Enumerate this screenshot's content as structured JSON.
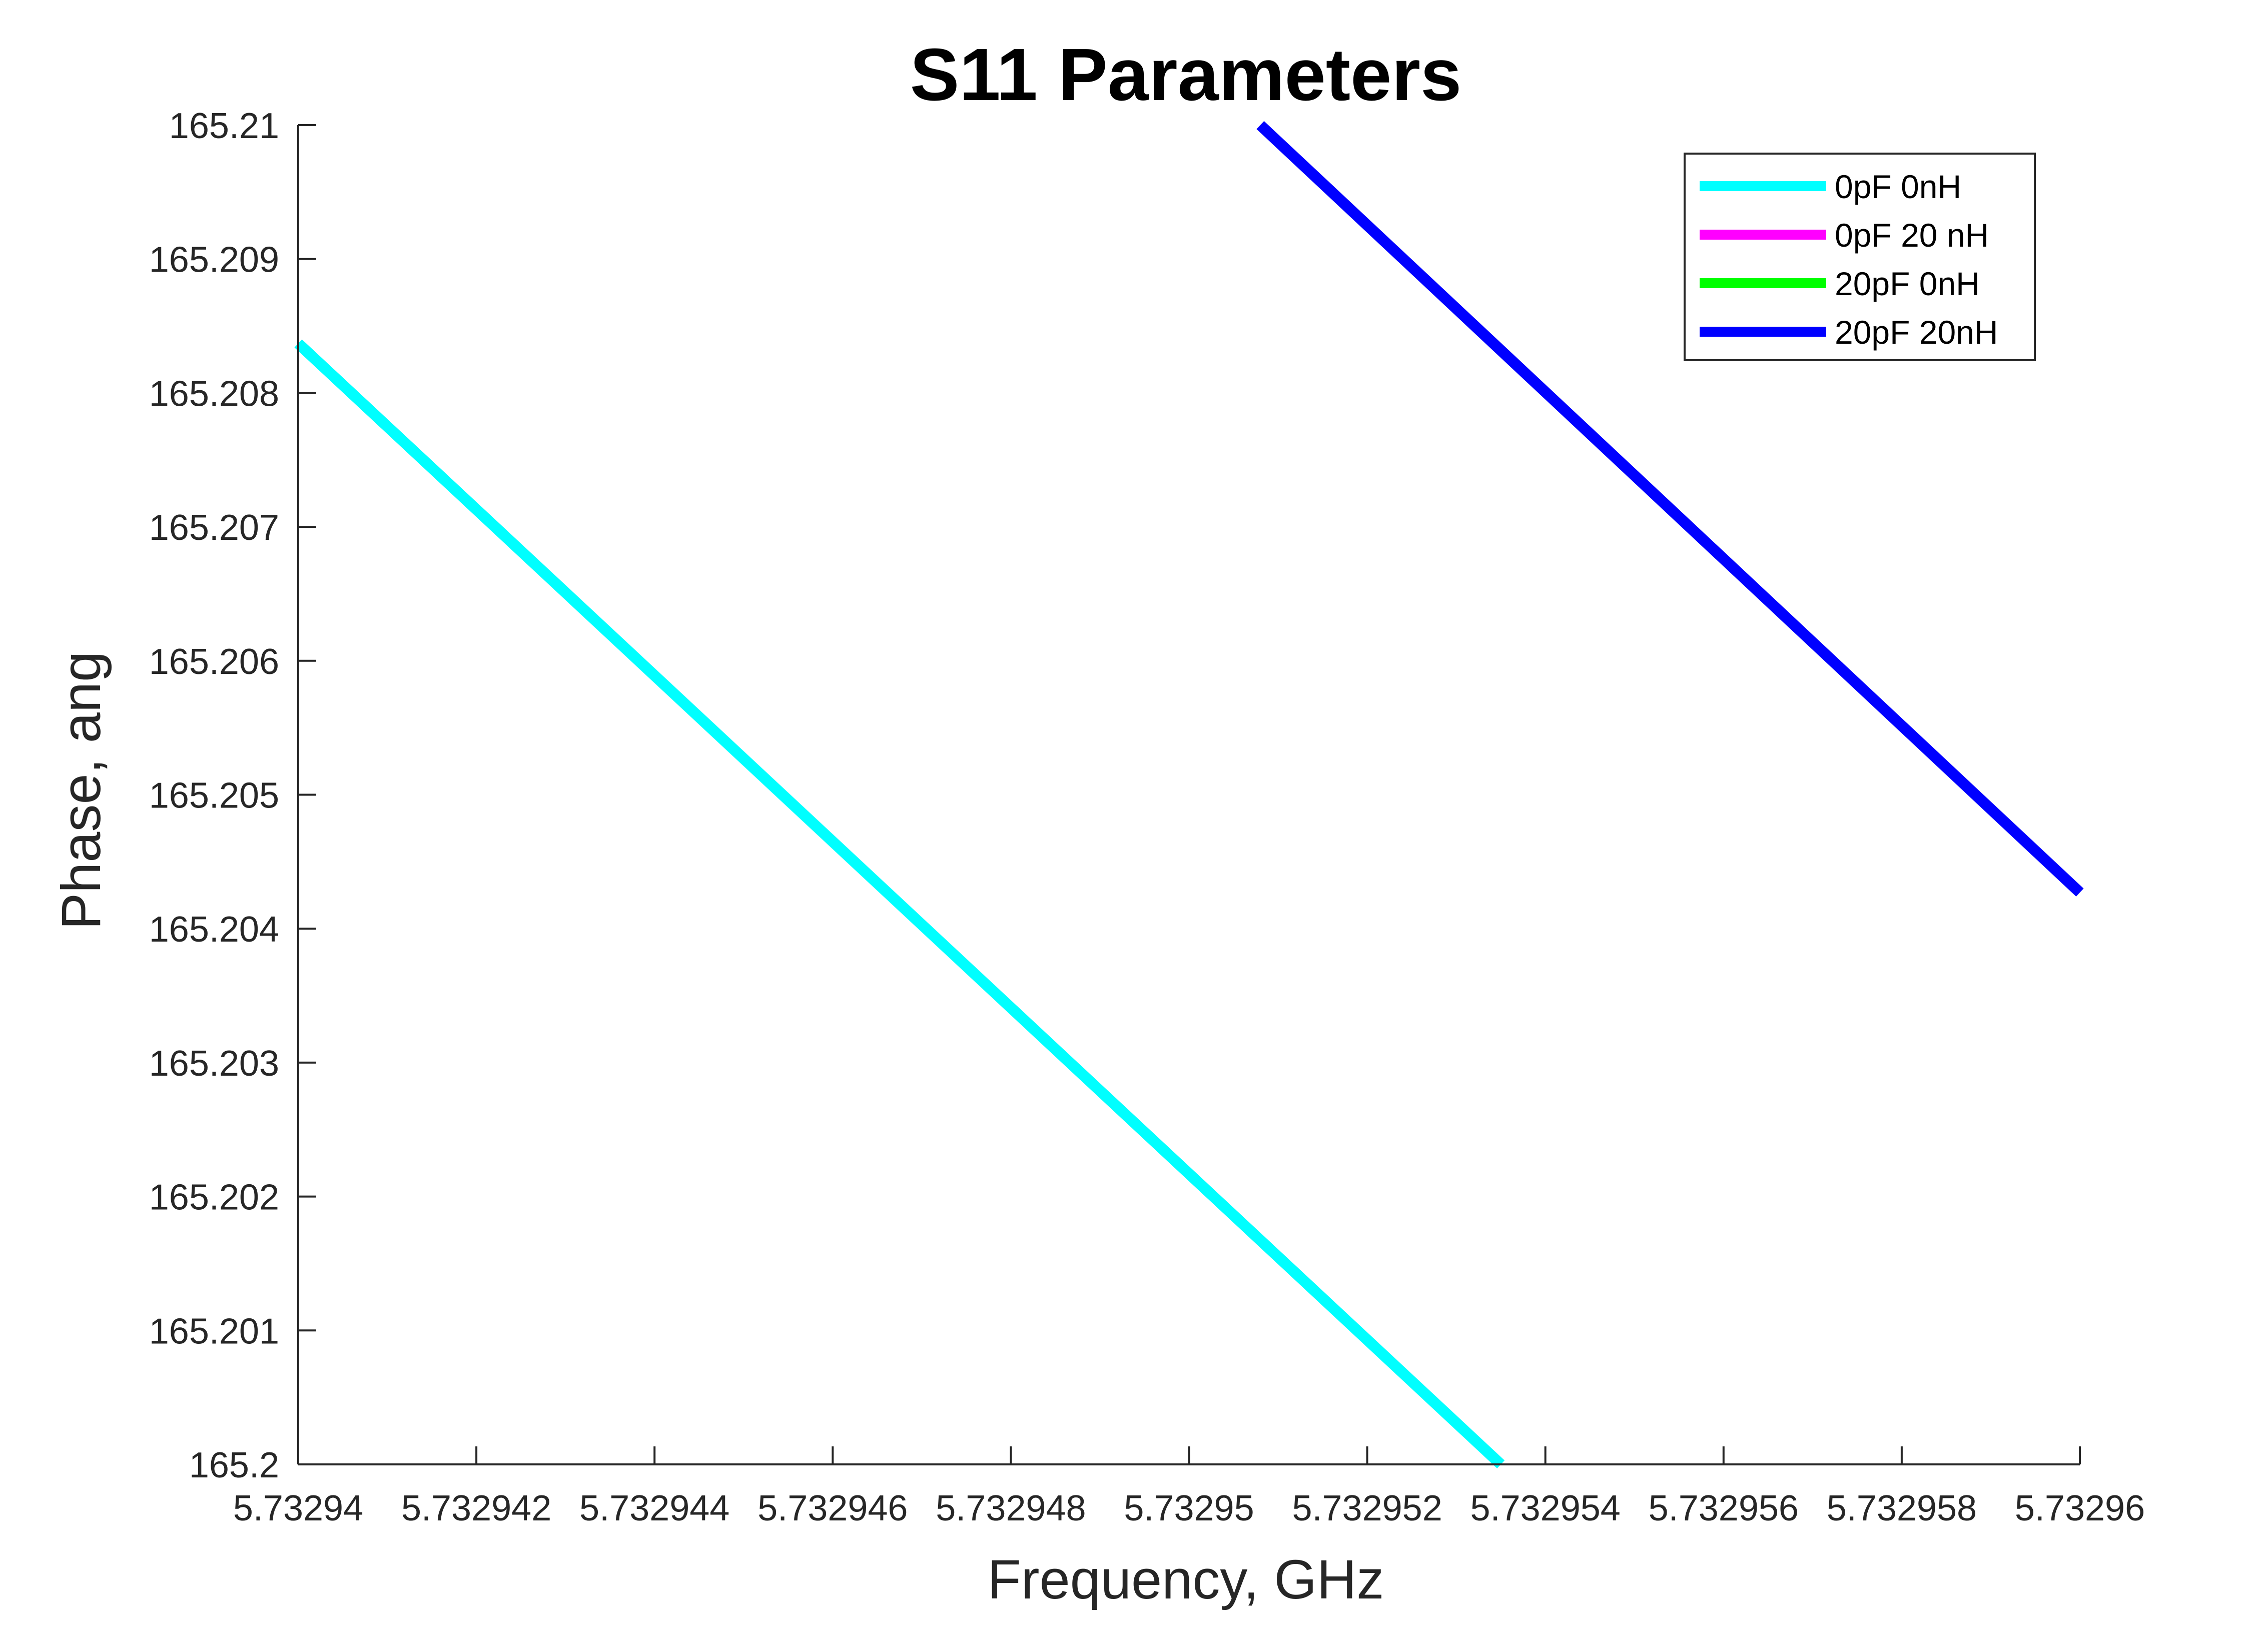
{
  "chart_data": {
    "type": "line",
    "title": "S11 Parameters",
    "xlabel": "Frequency, GHz",
    "ylabel": "Phase, ang",
    "xlim": [
      5.73294,
      5.73296
    ],
    "ylim": [
      165.2,
      165.21
    ],
    "x_ticks": [
      5.73294,
      5.732942,
      5.732944,
      5.732946,
      5.732948,
      5.73295,
      5.732952,
      5.732954,
      5.732956,
      5.732958,
      5.73296
    ],
    "x_tick_labels": [
      "5.73294",
      "5.732942",
      "5.732944",
      "5.732946",
      "5.732948",
      "5.73295",
      "5.732952",
      "5.732954",
      "5.732956",
      "5.732958",
      "5.73296"
    ],
    "y_ticks": [
      165.2,
      165.201,
      165.202,
      165.203,
      165.204,
      165.205,
      165.206,
      165.207,
      165.208,
      165.209,
      165.21
    ],
    "y_tick_labels": [
      "165.2",
      "165.201",
      "165.202",
      "165.203",
      "165.204",
      "165.205",
      "165.206",
      "165.207",
      "165.208",
      "165.209",
      "165.21"
    ],
    "grid": false,
    "legend_position": "top-right",
    "series": [
      {
        "name": "0pF 0nH",
        "color": "#00ffff",
        "x": [
          5.73294,
          5.7329535
        ],
        "y": [
          165.20837,
          165.2
        ]
      },
      {
        "name": "0pF 20 nH",
        "color": "#ff00ff",
        "x": [],
        "y": []
      },
      {
        "name": "20pF 0nH",
        "color": "#00ff00",
        "x": [],
        "y": []
      },
      {
        "name": "20pF 20nH",
        "color": "#0000ff",
        "x": [
          5.7329508,
          5.73296
        ],
        "y": [
          165.21,
          165.20427
        ]
      }
    ]
  }
}
